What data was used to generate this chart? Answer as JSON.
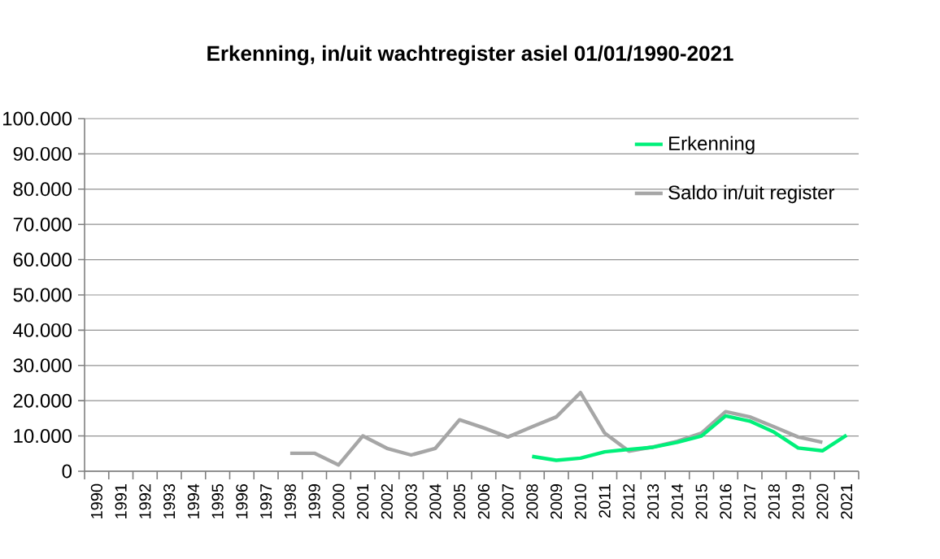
{
  "chart_data": {
    "type": "line",
    "title": "**Erkenning, in/uit wachtregister  asiel 01/01/1990-2021**",
    "categories": [
      "1990",
      "1991",
      "1992",
      "1993",
      "1994",
      "1995",
      "1996",
      "1997",
      "1998",
      "1999",
      "2000",
      "2001",
      "2002",
      "2003",
      "2004",
      "2005",
      "2006",
      "2007",
      "2008",
      "2009",
      "2010",
      "2011",
      "2012",
      "2013",
      "2014",
      "2015",
      "2016",
      "2017",
      "2018",
      "2019",
      "2020",
      "2021"
    ],
    "series": [
      {
        "name": "Erkenning",
        "color": "#00f07a",
        "values": [
          null,
          null,
          null,
          null,
          null,
          null,
          null,
          null,
          null,
          null,
          null,
          null,
          null,
          null,
          null,
          null,
          null,
          null,
          4200,
          3100,
          3700,
          5500,
          6200,
          6800,
          8200,
          10000,
          15700,
          14200,
          11100,
          6600,
          5800,
          10200
        ]
      },
      {
        "name": "Saldo in/uit register",
        "color": "#a6a6a6",
        "values": [
          null,
          null,
          null,
          null,
          null,
          null,
          null,
          null,
          5100,
          5100,
          1800,
          10000,
          6500,
          4600,
          6500,
          14600,
          12300,
          9700,
          12600,
          15400,
          22300,
          10800,
          5700,
          6900,
          8500,
          10800,
          16900,
          15400,
          12600,
          9700,
          8200,
          null
        ]
      }
    ],
    "ylim": [
      0,
      100000
    ],
    "yticks": [
      {
        "value": 0,
        "label": "0"
      },
      {
        "value": 10000,
        "label": "10.000"
      },
      {
        "value": 20000,
        "label": "20.000"
      },
      {
        "value": 30000,
        "label": "30.000"
      },
      {
        "value": 40000,
        "label": "40.000"
      },
      {
        "value": 50000,
        "label": "50.000"
      },
      {
        "value": 60000,
        "label": "60.000"
      },
      {
        "value": 70000,
        "label": "70.000"
      },
      {
        "value": 80000,
        "label": "80.000"
      },
      {
        "value": 90000,
        "label": "90.000"
      },
      {
        "value": 100000,
        "label": "100.000"
      }
    ],
    "grid": "y",
    "legend": "top right",
    "marker": "none",
    "line_style": "solid"
  }
}
